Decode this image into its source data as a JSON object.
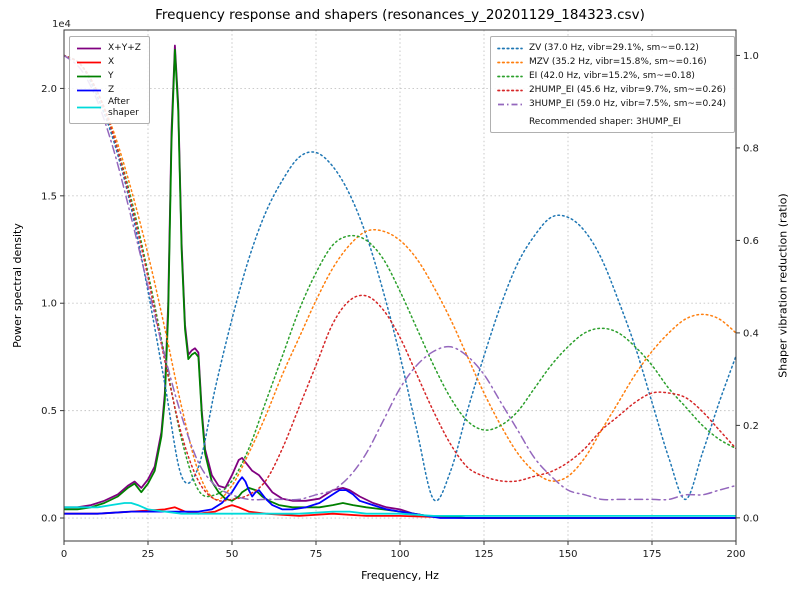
{
  "figure": {
    "title": "Frequency response and shapers (resonances_y_20201129_184323.csv)",
    "xlabel": "Frequency, Hz",
    "ylabel_left": "Power spectral density",
    "ylabel_right": "Shaper vibration reduction (ratio)",
    "left_axis_offset_text": "1e4"
  },
  "legend_psd": {
    "items": [
      {
        "label": "X+Y+Z",
        "color": "#800080",
        "style": "solid"
      },
      {
        "label": "X",
        "color": "#ff0000",
        "style": "solid"
      },
      {
        "label": "Y",
        "color": "#008000",
        "style": "solid"
      },
      {
        "label": "Z",
        "color": "#0000ff",
        "style": "solid"
      },
      {
        "label": "After\nshaper",
        "color": "#00dada",
        "style": "solid"
      }
    ]
  },
  "legend_shapers": {
    "items": [
      {
        "label": "ZV (37.0 Hz, vibr=29.1%, sm~=0.12)",
        "color": "#1f77b4",
        "style": "dotted"
      },
      {
        "label": "MZV (35.2 Hz, vibr=15.8%, sm~=0.16)",
        "color": "#ff7f0e",
        "style": "dotted"
      },
      {
        "label": "EI (42.0 Hz, vibr=15.2%, sm~=0.18)",
        "color": "#2ca02c",
        "style": "dotted"
      },
      {
        "label": "2HUMP_EI (45.6 Hz, vibr=9.7%, sm~=0.26)",
        "color": "#d62728",
        "style": "dotted"
      },
      {
        "label": "3HUMP_EI (59.0 Hz, vibr=7.5%, sm~=0.24)",
        "color": "#9467bd",
        "style": "dashdot"
      }
    ],
    "note": "Recommended shaper: 3HUMP_EI"
  },
  "chart_data": {
    "type": "line",
    "title": "Frequency response and shapers (resonances_y_20201129_184323.csv)",
    "xlabel": "Frequency, Hz",
    "ylabel_left": "Power spectral density",
    "ylabel_right": "Shaper vibration reduction (ratio)",
    "left_axis_multiplier": "1e4",
    "recommended_shaper": "3HUMP_EI",
    "grid": true,
    "xlim": [
      0,
      200
    ],
    "ylim_left": [
      -0.107,
      2.272
    ],
    "ylim_right": [
      -0.05,
      1.055
    ],
    "x_ticks": [
      0,
      25,
      50,
      75,
      100,
      125,
      150,
      175,
      200
    ],
    "y_ticks_left": [
      0.0,
      0.5,
      1.0,
      1.5,
      2.0
    ],
    "y_ticks_right": [
      0.0,
      0.2,
      0.4,
      0.6,
      0.8,
      1.0
    ],
    "psd_units": "1e4",
    "psd_series": [
      {
        "name": "X+Y+Z",
        "color": "#800080",
        "points": [
          [
            0,
            0.05
          ],
          [
            4,
            0.05
          ],
          [
            8,
            0.06
          ],
          [
            12,
            0.08
          ],
          [
            16,
            0.11
          ],
          [
            19,
            0.15
          ],
          [
            21,
            0.17
          ],
          [
            23,
            0.14
          ],
          [
            25,
            0.18
          ],
          [
            27,
            0.24
          ],
          [
            29,
            0.4
          ],
          [
            30,
            0.58
          ],
          [
            31,
            1.0
          ],
          [
            32,
            1.8
          ],
          [
            33,
            2.2
          ],
          [
            34,
            1.93
          ],
          [
            35,
            1.28
          ],
          [
            36,
            0.9
          ],
          [
            37,
            0.76
          ],
          [
            38,
            0.78
          ],
          [
            39,
            0.79
          ],
          [
            40,
            0.77
          ],
          [
            41,
            0.5
          ],
          [
            42,
            0.32
          ],
          [
            44,
            0.2
          ],
          [
            46,
            0.15
          ],
          [
            48,
            0.14
          ],
          [
            50,
            0.2
          ],
          [
            52,
            0.27
          ],
          [
            53,
            0.28
          ],
          [
            54,
            0.26
          ],
          [
            56,
            0.22
          ],
          [
            58,
            0.2
          ],
          [
            60,
            0.16
          ],
          [
            62,
            0.12
          ],
          [
            65,
            0.09
          ],
          [
            68,
            0.08
          ],
          [
            72,
            0.08
          ],
          [
            76,
            0.09
          ],
          [
            80,
            0.13
          ],
          [
            83,
            0.14
          ],
          [
            85,
            0.13
          ],
          [
            88,
            0.1
          ],
          [
            92,
            0.07
          ],
          [
            96,
            0.05
          ],
          [
            100,
            0.04
          ],
          [
            104,
            0.02
          ],
          [
            108,
            0.01
          ],
          [
            112,
            0.01
          ],
          [
            120,
            0.0
          ],
          [
            140,
            0.0
          ],
          [
            170,
            0.0
          ],
          [
            200,
            0.0
          ]
        ]
      },
      {
        "name": "X",
        "color": "#ff0000",
        "points": [
          [
            0,
            0.02
          ],
          [
            10,
            0.02
          ],
          [
            20,
            0.03
          ],
          [
            30,
            0.04
          ],
          [
            33,
            0.05
          ],
          [
            36,
            0.03
          ],
          [
            40,
            0.02
          ],
          [
            45,
            0.03
          ],
          [
            48,
            0.05
          ],
          [
            50,
            0.06
          ],
          [
            52,
            0.05
          ],
          [
            55,
            0.03
          ],
          [
            60,
            0.02
          ],
          [
            70,
            0.01
          ],
          [
            80,
            0.02
          ],
          [
            90,
            0.01
          ],
          [
            100,
            0.01
          ],
          [
            120,
            0.0
          ],
          [
            150,
            0.0
          ],
          [
            200,
            0.0
          ]
        ]
      },
      {
        "name": "Y",
        "color": "#008000",
        "points": [
          [
            0,
            0.04
          ],
          [
            4,
            0.04
          ],
          [
            8,
            0.05
          ],
          [
            12,
            0.07
          ],
          [
            16,
            0.1
          ],
          [
            19,
            0.14
          ],
          [
            21,
            0.16
          ],
          [
            23,
            0.12
          ],
          [
            25,
            0.16
          ],
          [
            27,
            0.22
          ],
          [
            29,
            0.38
          ],
          [
            30,
            0.55
          ],
          [
            31,
            0.95
          ],
          [
            32,
            1.75
          ],
          [
            33,
            2.18
          ],
          [
            34,
            1.9
          ],
          [
            35,
            1.25
          ],
          [
            36,
            0.88
          ],
          [
            37,
            0.74
          ],
          [
            38,
            0.76
          ],
          [
            39,
            0.77
          ],
          [
            40,
            0.75
          ],
          [
            41,
            0.48
          ],
          [
            42,
            0.3
          ],
          [
            44,
            0.17
          ],
          [
            46,
            0.12
          ],
          [
            48,
            0.09
          ],
          [
            50,
            0.08
          ],
          [
            52,
            0.1
          ],
          [
            53,
            0.12
          ],
          [
            55,
            0.14
          ],
          [
            57,
            0.13
          ],
          [
            59,
            0.1
          ],
          [
            61,
            0.08
          ],
          [
            64,
            0.06
          ],
          [
            68,
            0.05
          ],
          [
            72,
            0.05
          ],
          [
            76,
            0.05
          ],
          [
            80,
            0.06
          ],
          [
            83,
            0.07
          ],
          [
            86,
            0.06
          ],
          [
            90,
            0.05
          ],
          [
            95,
            0.04
          ],
          [
            100,
            0.03
          ],
          [
            104,
            0.02
          ],
          [
            108,
            0.01
          ],
          [
            112,
            0.01
          ],
          [
            120,
            0.0
          ],
          [
            140,
            0.0
          ],
          [
            170,
            0.0
          ],
          [
            200,
            0.0
          ]
        ]
      },
      {
        "name": "Z",
        "color": "#0000ff",
        "points": [
          [
            0,
            0.02
          ],
          [
            10,
            0.02
          ],
          [
            20,
            0.03
          ],
          [
            30,
            0.03
          ],
          [
            35,
            0.03
          ],
          [
            40,
            0.03
          ],
          [
            44,
            0.04
          ],
          [
            47,
            0.07
          ],
          [
            50,
            0.12
          ],
          [
            52,
            0.17
          ],
          [
            53,
            0.19
          ],
          [
            54,
            0.17
          ],
          [
            55,
            0.13
          ],
          [
            56,
            0.1
          ],
          [
            57,
            0.12
          ],
          [
            58,
            0.13
          ],
          [
            60,
            0.09
          ],
          [
            62,
            0.06
          ],
          [
            65,
            0.04
          ],
          [
            68,
            0.04
          ],
          [
            72,
            0.05
          ],
          [
            76,
            0.07
          ],
          [
            80,
            0.11
          ],
          [
            82,
            0.13
          ],
          [
            84,
            0.13
          ],
          [
            86,
            0.11
          ],
          [
            88,
            0.08
          ],
          [
            92,
            0.06
          ],
          [
            96,
            0.04
          ],
          [
            100,
            0.03
          ],
          [
            104,
            0.02
          ],
          [
            108,
            0.01
          ],
          [
            112,
            0.0
          ],
          [
            130,
            0.0
          ],
          [
            160,
            0.0
          ],
          [
            200,
            0.0
          ]
        ]
      },
      {
        "name": "After shaper",
        "color": "#00dada",
        "points": [
          [
            0,
            0.05
          ],
          [
            5,
            0.05
          ],
          [
            10,
            0.05
          ],
          [
            14,
            0.06
          ],
          [
            18,
            0.07
          ],
          [
            20,
            0.07
          ],
          [
            22,
            0.06
          ],
          [
            25,
            0.04
          ],
          [
            30,
            0.03
          ],
          [
            35,
            0.02
          ],
          [
            40,
            0.02
          ],
          [
            50,
            0.02
          ],
          [
            60,
            0.02
          ],
          [
            70,
            0.02
          ],
          [
            80,
            0.03
          ],
          [
            85,
            0.03
          ],
          [
            90,
            0.02
          ],
          [
            100,
            0.02
          ],
          [
            110,
            0.01
          ],
          [
            130,
            0.01
          ],
          [
            160,
            0.01
          ],
          [
            200,
            0.01
          ]
        ]
      }
    ],
    "shaper_series": [
      {
        "name": "ZV",
        "freq_hz": 37.0,
        "vibr_pct": 29.1,
        "smoothing": 0.12,
        "color": "#1f77b4",
        "dash": "dotted",
        "x_start": 0,
        "x_step": 5,
        "values": [
          1.0,
          0.98,
          0.91,
          0.81,
          0.67,
          0.49,
          0.29,
          0.09,
          0.11,
          0.28,
          0.43,
          0.56,
          0.66,
          0.73,
          0.78,
          0.79,
          0.76,
          0.7,
          0.61,
          0.49,
          0.35,
          0.19,
          0.04,
          0.1,
          0.23,
          0.35,
          0.46,
          0.55,
          0.61,
          0.65,
          0.65,
          0.62,
          0.56,
          0.47,
          0.37,
          0.25,
          0.13,
          0.04,
          0.14,
          0.25,
          0.35
        ]
      },
      {
        "name": "MZV",
        "freq_hz": 35.2,
        "vibr_pct": 15.8,
        "smoothing": 0.16,
        "color": "#ff7f0e",
        "dash": "dotted",
        "x_start": 0,
        "x_step": 5,
        "values": [
          1.0,
          0.98,
          0.92,
          0.83,
          0.71,
          0.57,
          0.41,
          0.24,
          0.1,
          0.04,
          0.07,
          0.14,
          0.22,
          0.31,
          0.39,
          0.47,
          0.54,
          0.59,
          0.62,
          0.62,
          0.6,
          0.56,
          0.5,
          0.43,
          0.35,
          0.27,
          0.2,
          0.14,
          0.1,
          0.08,
          0.09,
          0.13,
          0.19,
          0.25,
          0.31,
          0.36,
          0.4,
          0.43,
          0.44,
          0.43,
          0.4
        ]
      },
      {
        "name": "EI",
        "freq_hz": 42.0,
        "vibr_pct": 15.2,
        "smoothing": 0.18,
        "color": "#2ca02c",
        "dash": "dotted",
        "x_start": 0,
        "x_step": 5,
        "values": [
          1.0,
          0.98,
          0.92,
          0.82,
          0.69,
          0.53,
          0.35,
          0.17,
          0.06,
          0.05,
          0.08,
          0.15,
          0.25,
          0.35,
          0.45,
          0.53,
          0.59,
          0.61,
          0.6,
          0.56,
          0.49,
          0.41,
          0.33,
          0.26,
          0.21,
          0.19,
          0.2,
          0.23,
          0.28,
          0.33,
          0.37,
          0.4,
          0.41,
          0.4,
          0.37,
          0.33,
          0.28,
          0.24,
          0.2,
          0.17,
          0.15
        ]
      },
      {
        "name": "2HUMP_EI",
        "freq_hz": 45.6,
        "vibr_pct": 9.7,
        "smoothing": 0.26,
        "color": "#d62728",
        "dash": "dotted",
        "x_start": 0,
        "x_step": 5,
        "values": [
          1.0,
          0.98,
          0.92,
          0.82,
          0.68,
          0.52,
          0.34,
          0.18,
          0.08,
          0.04,
          0.04,
          0.05,
          0.08,
          0.15,
          0.24,
          0.33,
          0.42,
          0.47,
          0.48,
          0.45,
          0.39,
          0.31,
          0.23,
          0.16,
          0.11,
          0.09,
          0.08,
          0.08,
          0.09,
          0.1,
          0.12,
          0.15,
          0.19,
          0.22,
          0.25,
          0.27,
          0.27,
          0.26,
          0.23,
          0.19,
          0.15
        ]
      },
      {
        "name": "3HUMP_EI",
        "freq_hz": 59.0,
        "vibr_pct": 7.5,
        "smoothing": 0.24,
        "color": "#9467bd",
        "dash": "dashdot",
        "x_start": 0,
        "x_step": 5,
        "values": [
          1.0,
          0.97,
          0.9,
          0.79,
          0.65,
          0.5,
          0.35,
          0.22,
          0.12,
          0.07,
          0.05,
          0.04,
          0.04,
          0.04,
          0.04,
          0.05,
          0.06,
          0.09,
          0.14,
          0.21,
          0.28,
          0.33,
          0.36,
          0.37,
          0.35,
          0.31,
          0.25,
          0.19,
          0.13,
          0.09,
          0.06,
          0.05,
          0.04,
          0.04,
          0.04,
          0.04,
          0.04,
          0.05,
          0.05,
          0.06,
          0.07
        ]
      }
    ]
  }
}
